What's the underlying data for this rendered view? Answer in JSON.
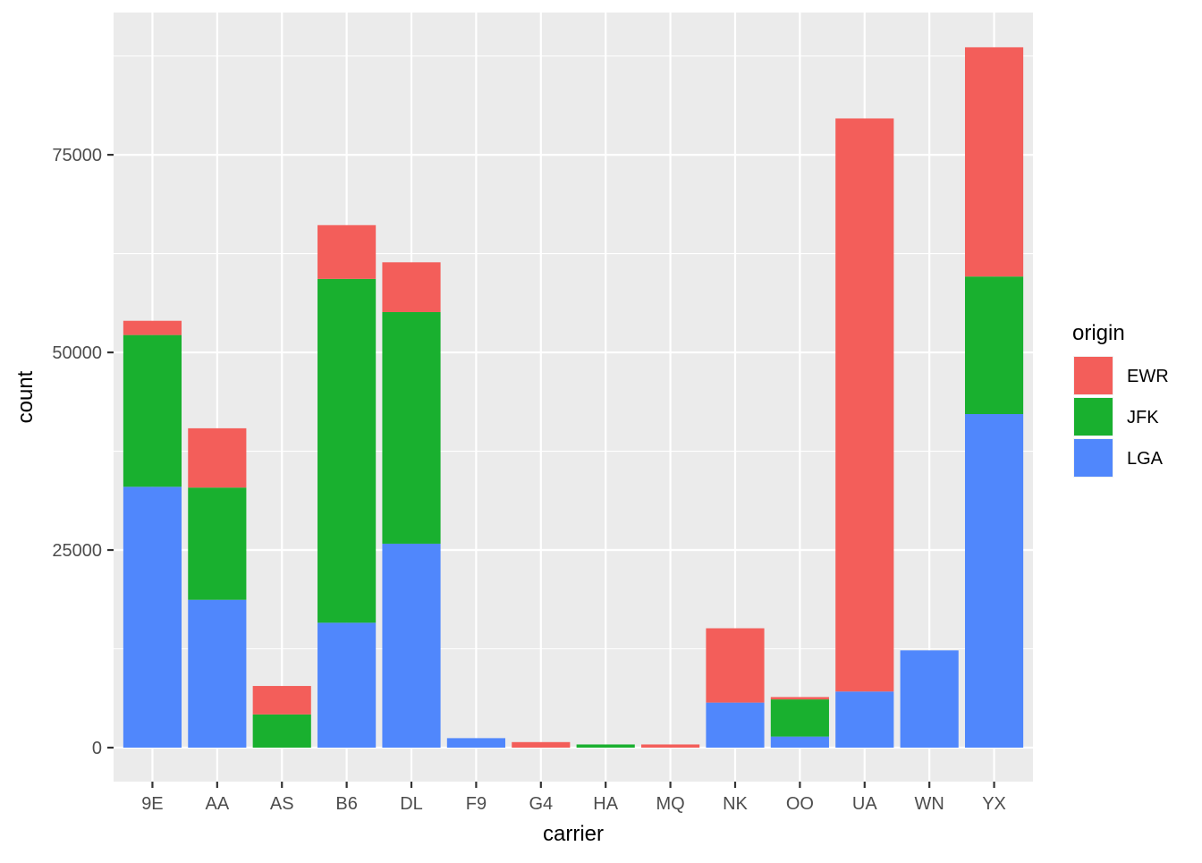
{
  "chart_data": {
    "type": "bar",
    "stacked": true,
    "xlabel": "carrier",
    "ylabel": "count",
    "categories": [
      "9E",
      "AA",
      "AS",
      "B6",
      "DL",
      "F9",
      "G4",
      "HA",
      "MQ",
      "NK",
      "OO",
      "UA",
      "WN",
      "YX"
    ],
    "ylim": [
      -4300,
      93000
    ],
    "yticks": [
      0,
      25000,
      50000,
      75000
    ],
    "ytick_labels": [
      "0",
      "25000",
      "50000",
      "75000"
    ],
    "grid": true,
    "legend": {
      "title": "origin",
      "position": "right",
      "entries": [
        "EWR",
        "JFK",
        "LGA"
      ]
    },
    "stack_order_bottom_to_top": [
      "LGA",
      "JFK",
      "EWR"
    ],
    "series": [
      {
        "name": "EWR",
        "color": "#F35E5A",
        "values": [
          1800,
          7500,
          3600,
          6800,
          6300,
          0,
          700,
          0,
          400,
          9400,
          300,
          72500,
          0,
          29000
        ]
      },
      {
        "name": "JFK",
        "color": "#19B02F",
        "values": [
          19200,
          14200,
          4200,
          43500,
          29300,
          0,
          0,
          400,
          0,
          0,
          4700,
          0,
          0,
          17400
        ]
      },
      {
        "name": "LGA",
        "color": "#5087FC",
        "values": [
          33000,
          18700,
          0,
          15800,
          25800,
          1200,
          0,
          0,
          0,
          5700,
          1400,
          7100,
          12300,
          42200
        ]
      }
    ]
  }
}
